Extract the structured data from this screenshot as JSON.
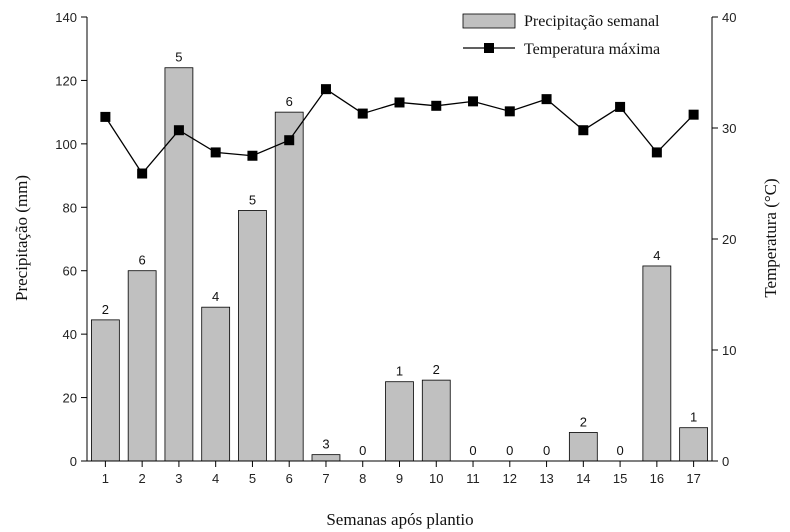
{
  "chart_data": {
    "type": "bar",
    "categories": [
      "1",
      "2",
      "3",
      "4",
      "5",
      "6",
      "7",
      "8",
      "9",
      "10",
      "11",
      "12",
      "13",
      "14",
      "15",
      "16",
      "17"
    ],
    "xlabel": "Semanas após plantio",
    "ylabel": "Precipitação (mm)",
    "y2label": "Temperatura (°C)",
    "ylim": [
      0,
      140
    ],
    "y2lim": [
      0,
      40
    ],
    "yticks": [
      0,
      20,
      40,
      60,
      80,
      100,
      120,
      140
    ],
    "y2ticks": [
      0,
      10,
      20,
      30,
      40
    ],
    "legend_position": "top-right",
    "grid": false,
    "series": [
      {
        "name": "Precipitação semanal",
        "type": "bar",
        "axis": "left",
        "color": "#c0c0c0",
        "values": [
          44.5,
          60,
          124,
          48.5,
          79,
          110,
          2,
          0,
          25,
          25.5,
          0,
          0,
          0,
          9,
          0,
          61.5,
          10.5
        ],
        "labels": [
          "2",
          "6",
          "5",
          "4",
          "5",
          "6",
          "3",
          "0",
          "1",
          "2",
          "0",
          "0",
          "0",
          "2",
          "0",
          "4",
          "1"
        ]
      },
      {
        "name": "Temperatura máxima",
        "type": "line",
        "axis": "right",
        "color": "#000000",
        "marker": "square",
        "values": [
          31.0,
          25.9,
          29.8,
          27.8,
          27.5,
          28.9,
          33.5,
          31.3,
          32.3,
          32.0,
          32.4,
          31.5,
          32.6,
          29.8,
          31.9,
          27.8,
          31.2
        ]
      }
    ]
  }
}
